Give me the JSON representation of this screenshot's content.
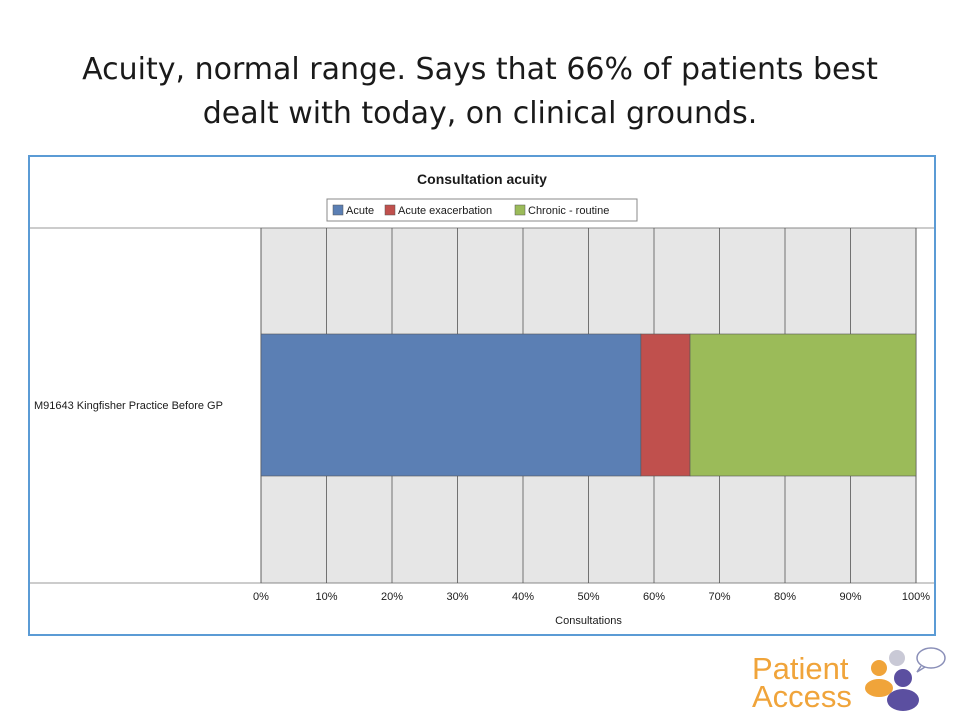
{
  "slide": {
    "title_line1": "Acuity, normal range.  Says that 66% of patients best",
    "title_line2": "dealt with today, on clinical grounds."
  },
  "logo": {
    "line1": "Patient",
    "line2": "Access",
    "colors": {
      "text": "#f0a43a",
      "orange": "#f0a43a",
      "blue": "#5b4fa0"
    }
  },
  "chart_data": {
    "type": "bar",
    "orientation": "horizontal",
    "stacked": true,
    "title": "Consultation acuity",
    "xlabel": "Consultations",
    "ylabel": "",
    "categories": [
      "M91643 Kingfisher Practice   Before   GP"
    ],
    "series": [
      {
        "name": "Acute",
        "values": [
          58
        ],
        "color": "#5b7fb4"
      },
      {
        "name": "Acute exacerbation",
        "values": [
          7.5
        ],
        "color": "#c0504d"
      },
      {
        "name": "Chronic - routine",
        "values": [
          34.5
        ],
        "color": "#9bbb59"
      }
    ],
    "xlim": [
      0,
      100
    ],
    "x_ticks": [
      "0%",
      "10%",
      "20%",
      "30%",
      "40%",
      "50%",
      "60%",
      "70%",
      "80%",
      "90%",
      "100%"
    ],
    "legend": "top-center",
    "grid": true,
    "plot_background": "#e6e6e6"
  }
}
